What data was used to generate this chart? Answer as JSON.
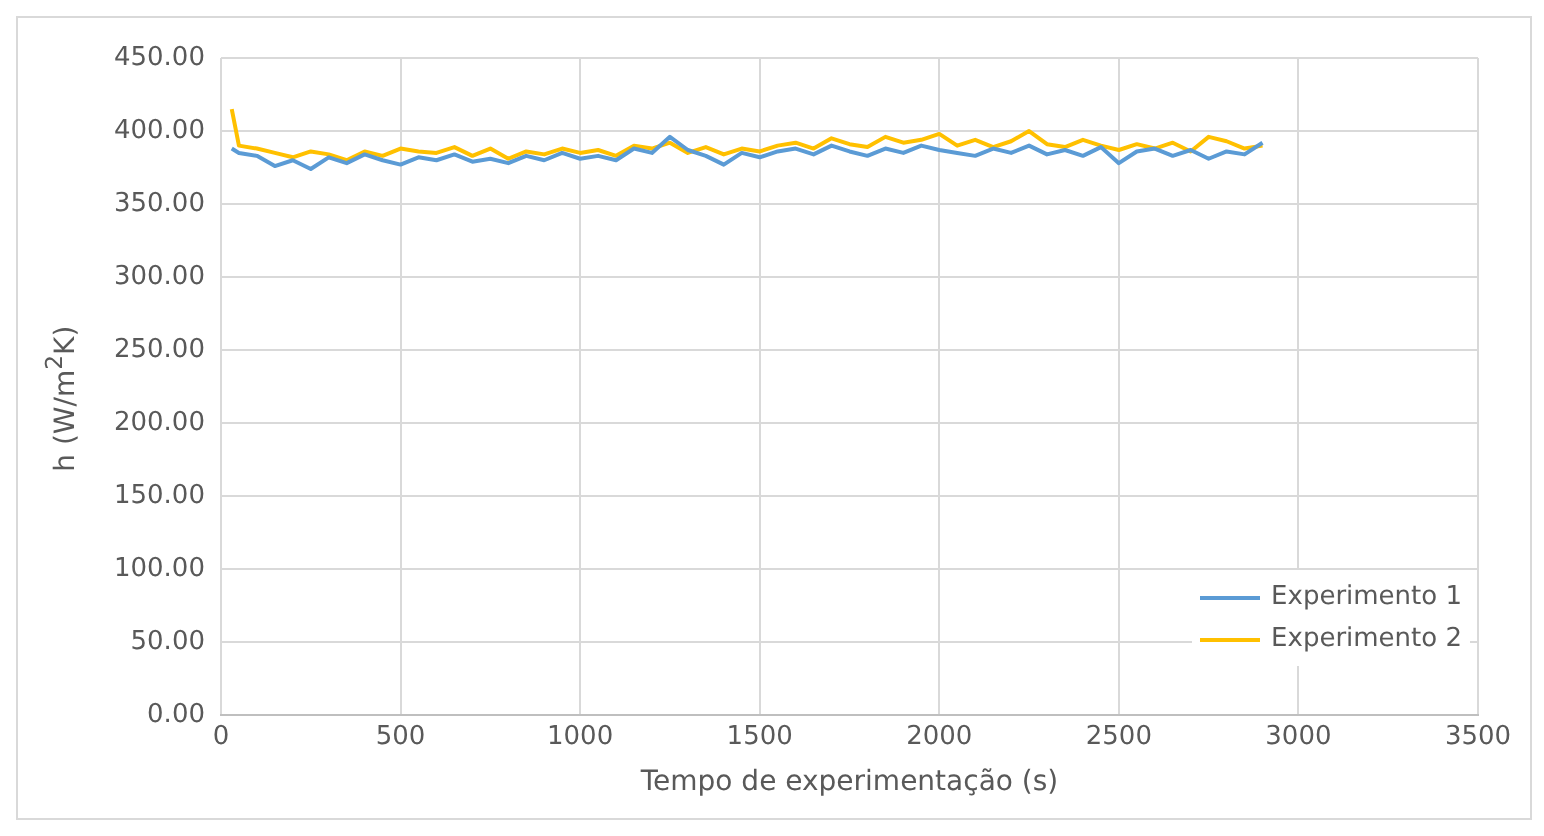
{
  "chart_data": {
    "type": "line",
    "xlabel": "Tempo de experimentação (s)",
    "ylabel": "h (W/m$^{2}$K)",
    "xlim": [
      0,
      3500
    ],
    "xticks": [
      0,
      500,
      1000,
      1500,
      2000,
      2500,
      3000,
      3500
    ],
    "ylim": [
      0,
      450
    ],
    "yticks": [
      {
        "value": 0,
        "label": "0.00"
      },
      {
        "value": 50,
        "label": "50.00"
      },
      {
        "value": 100,
        "label": "100.00"
      },
      {
        "value": 150,
        "label": "150.00"
      },
      {
        "value": 200,
        "label": "200.00"
      },
      {
        "value": 250,
        "label": "250.00"
      },
      {
        "value": 300,
        "label": "300.00"
      },
      {
        "value": 350,
        "label": "350.00"
      },
      {
        "value": 400,
        "label": "400.00"
      },
      {
        "value": 450,
        "label": "450.00"
      }
    ],
    "grid": true,
    "legend": "bottom right",
    "marker": "none",
    "line_style": "solid",
    "x": [
      30,
      50,
      100,
      150,
      200,
      250,
      300,
      350,
      400,
      450,
      500,
      550,
      600,
      650,
      700,
      750,
      800,
      850,
      900,
      950,
      1000,
      1050,
      1100,
      1150,
      1200,
      1250,
      1300,
      1350,
      1400,
      1450,
      1500,
      1550,
      1600,
      1650,
      1700,
      1750,
      1800,
      1850,
      1900,
      1950,
      2000,
      2050,
      2100,
      2150,
      2200,
      2250,
      2300,
      2350,
      2400,
      2450,
      2500,
      2550,
      2600,
      2650,
      2700,
      2750,
      2800,
      2850,
      2900
    ],
    "series": [
      {
        "name": "Experimento 1",
        "color": "#5b9bd5",
        "values": [
          388,
          385,
          383,
          376,
          380,
          374,
          382,
          378,
          384,
          380,
          377,
          382,
          380,
          384,
          379,
          381,
          378,
          383,
          380,
          385,
          381,
          383,
          380,
          388,
          385,
          396,
          387,
          383,
          377,
          385,
          382,
          386,
          388,
          384,
          390,
          386,
          383,
          388,
          385,
          390,
          387,
          385,
          383,
          388,
          385,
          390,
          384,
          387,
          383,
          389,
          378,
          386,
          388,
          383,
          387,
          381,
          386,
          384,
          392
        ]
      },
      {
        "name": "Experimento 2",
        "color": "#ffc000",
        "values": [
          415,
          390,
          388,
          385,
          382,
          386,
          384,
          380,
          386,
          383,
          388,
          386,
          385,
          389,
          383,
          388,
          381,
          386,
          384,
          388,
          385,
          387,
          383,
          390,
          388,
          392,
          385,
          389,
          384,
          388,
          386,
          390,
          392,
          388,
          395,
          391,
          389,
          396,
          392,
          394,
          398,
          390,
          394,
          389,
          393,
          400,
          391,
          389,
          394,
          390,
          387,
          391,
          388,
          392,
          386,
          396,
          393,
          388,
          390
        ]
      }
    ]
  }
}
